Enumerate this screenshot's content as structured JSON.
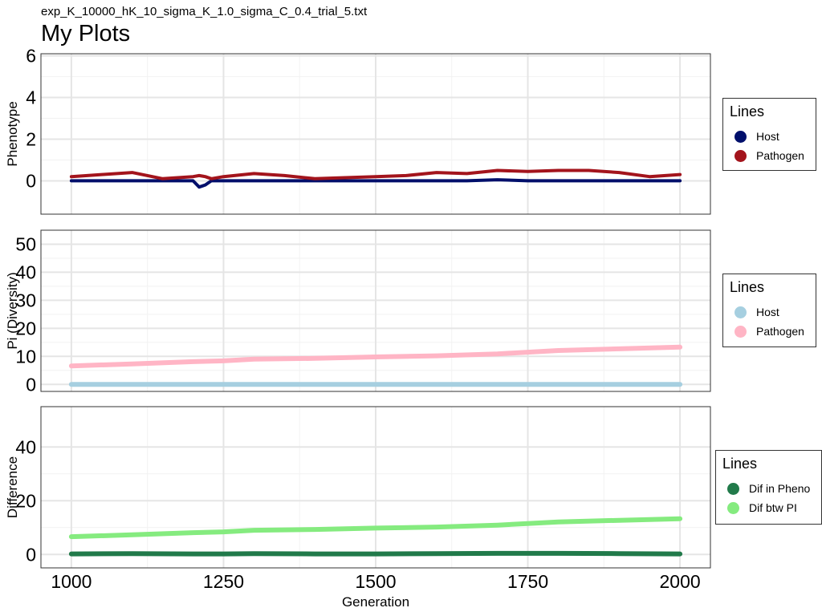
{
  "header": {
    "subtitle": "exp_K_10000_hK_10_sigma_K_1.0_sigma_C_0.4_trial_5.txt",
    "title": "My Plots"
  },
  "chart_data": [
    {
      "type": "line",
      "ylabel": "Phenotype",
      "xlim": [
        950,
        2050
      ],
      "ylim": [
        -1.6,
        6.1
      ],
      "yticks": [
        0,
        2,
        4,
        6
      ],
      "xticks": [
        1000,
        1250,
        1500,
        1750,
        2000
      ],
      "grid": true,
      "legend": {
        "title": "Lines",
        "position": "right"
      },
      "x": [
        1000,
        1050,
        1100,
        1150,
        1200,
        1210,
        1220,
        1230,
        1250,
        1300,
        1350,
        1400,
        1450,
        1500,
        1550,
        1600,
        1650,
        1700,
        1750,
        1800,
        1850,
        1900,
        1950,
        2000
      ],
      "series": [
        {
          "name": "Host",
          "color": "#000f6b",
          "values": [
            0,
            0,
            0,
            0,
            0,
            -0.3,
            -0.2,
            0,
            0,
            0,
            0,
            0,
            0,
            0,
            0,
            0,
            0,
            0.05,
            0,
            0,
            0,
            0,
            0,
            0
          ]
        },
        {
          "name": "Pathogen",
          "color": "#a3141c",
          "values": [
            0.2,
            0.3,
            0.4,
            0.1,
            0.2,
            0.25,
            0.2,
            0.1,
            0.2,
            0.35,
            0.25,
            0.1,
            0.15,
            0.2,
            0.25,
            0.4,
            0.35,
            0.5,
            0.45,
            0.5,
            0.5,
            0.4,
            0.2,
            0.3
          ]
        }
      ]
    },
    {
      "type": "line",
      "ylabel": "Pi (Diversity)",
      "xlim": [
        950,
        2050
      ],
      "ylim": [
        -2.5,
        55
      ],
      "yticks": [
        0,
        10,
        20,
        30,
        40,
        50
      ],
      "xticks": [
        1000,
        1250,
        1500,
        1750,
        2000
      ],
      "grid": true,
      "legend": {
        "title": "Lines",
        "position": "right"
      },
      "x": [
        1000,
        1100,
        1200,
        1250,
        1300,
        1400,
        1500,
        1600,
        1700,
        1800,
        1900,
        2000
      ],
      "series": [
        {
          "name": "Host",
          "color": "#a6cfe0",
          "values": [
            0,
            0,
            0,
            0,
            0,
            0,
            0,
            0,
            0,
            0,
            0,
            0
          ]
        },
        {
          "name": "Pathogen",
          "color": "#ffb5c5",
          "values": [
            6.6,
            7.3,
            8.1,
            8.4,
            9.0,
            9.3,
            9.8,
            10.2,
            10.9,
            12.1,
            12.7,
            13.3
          ]
        }
      ]
    },
    {
      "type": "line",
      "ylabel": "Difference",
      "xlabel": "Generation",
      "xlim": [
        950,
        2050
      ],
      "ylim": [
        -5,
        55
      ],
      "yticks": [
        0,
        20,
        40
      ],
      "xticks": [
        1000,
        1250,
        1500,
        1750,
        2000
      ],
      "grid": true,
      "legend": {
        "title": "Lines",
        "position": "right"
      },
      "x": [
        1000,
        1100,
        1200,
        1250,
        1300,
        1400,
        1500,
        1600,
        1700,
        1800,
        1900,
        2000
      ],
      "series": [
        {
          "name": "Dif in Pheno",
          "color": "#217a4a",
          "values": [
            0.2,
            0.3,
            0.2,
            0.2,
            0.3,
            0.2,
            0.2,
            0.3,
            0.4,
            0.4,
            0.3,
            0.2
          ]
        },
        {
          "name": "Dif btw PI",
          "color": "#85eb7f",
          "values": [
            6.6,
            7.3,
            8.1,
            8.4,
            9.0,
            9.3,
            9.8,
            10.2,
            10.9,
            12.1,
            12.7,
            13.3
          ]
        }
      ]
    }
  ]
}
